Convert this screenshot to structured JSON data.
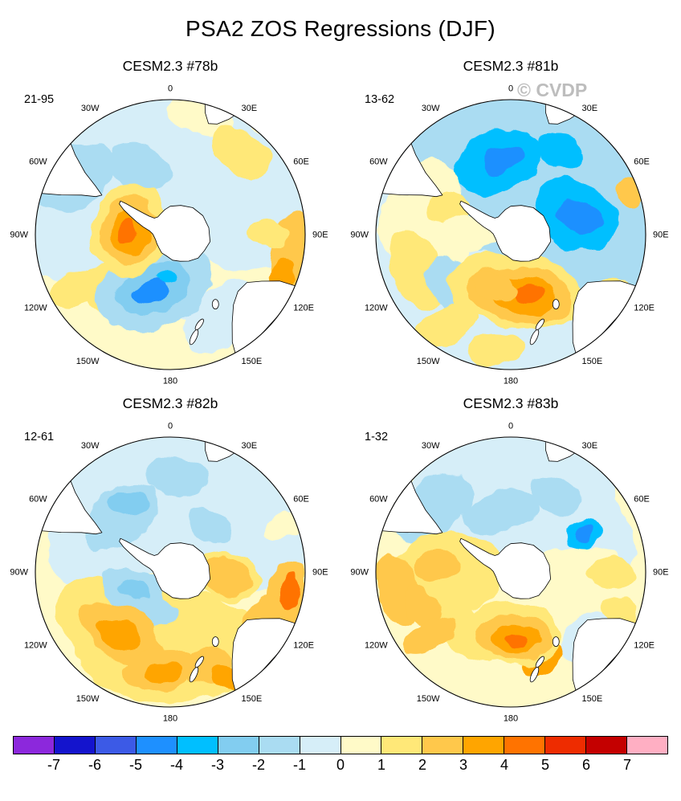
{
  "page": {
    "title": "PSA2 ZOS Regressions (DJF)",
    "watermark": "© CVDP"
  },
  "chart_data": {
    "type": "heatmap",
    "subtype": "south_polar_stereographic_filled_contour_maps",
    "title": "PSA2 ZOS Regressions (DJF)",
    "legend_position": "bottom",
    "lon_labels": [
      "0",
      "30E",
      "60E",
      "90E",
      "120E",
      "150E",
      "180",
      "150W",
      "120W",
      "90W",
      "60W",
      "30W"
    ],
    "colorbar": {
      "levels": [
        -7,
        -6,
        -5,
        -4,
        -3,
        -2,
        -1,
        0,
        1,
        2,
        3,
        4,
        5,
        6,
        7
      ],
      "labels": [
        "-7",
        "-6",
        "-5",
        "-4",
        "-3",
        "-2",
        "-1",
        "0",
        "1",
        "2",
        "3",
        "4",
        "5",
        "6",
        "7"
      ],
      "colors": [
        "#8C28DC",
        "#1414CD",
        "#3C5AE6",
        "#1E90FF",
        "#00BFFF",
        "#82CDF0",
        "#AADCF2",
        "#D6EEF8",
        "#FFFAC8",
        "#FFE878",
        "#FFC84B",
        "#FFA500",
        "#FF7300",
        "#EE2C00",
        "#C40000",
        "#FFAFC3"
      ]
    },
    "panels": [
      {
        "title": "CESM2.3 #78b",
        "years": "21-95",
        "summary": "Positive center (~+3 to +5) near 90W mid-high latitudes; negative center (~-2 to -4) near 150W-180; weak negative background north/east, weak positive south/west; positive band along 90E-120E rim.",
        "base": 8,
        "blobs": [
          [
            345,
            0.5,
            135,
            95,
            -15,
            7
          ],
          [
            60,
            0.55,
            110,
            85,
            30,
            7
          ],
          [
            270,
            0.6,
            90,
            70,
            0,
            7
          ],
          [
            300,
            0.85,
            55,
            40,
            -30,
            6
          ],
          [
            335,
            0.55,
            40,
            28,
            20,
            6
          ],
          [
            15,
            0.9,
            45,
            22,
            15,
            8
          ],
          [
            40,
            0.8,
            40,
            25,
            40,
            9
          ],
          [
            148,
            0.72,
            55,
            35,
            -40,
            7
          ],
          [
            160,
            0.55,
            30,
            20,
            0,
            7
          ],
          [
            222,
            0.6,
            50,
            30,
            30,
            9
          ],
          [
            240,
            0.8,
            35,
            22,
            -20,
            9
          ],
          [
            100,
            0.9,
            26,
            55,
            10,
            10
          ],
          [
            113,
            0.88,
            16,
            30,
            20,
            11
          ],
          [
            90,
            0.72,
            26,
            18,
            0,
            9
          ],
          [
            197,
            0.4,
            75,
            50,
            -20,
            6
          ],
          [
            197,
            0.42,
            48,
            30,
            -20,
            5
          ],
          [
            200,
            0.45,
            22,
            14,
            -10,
            3
          ],
          [
            182,
            0.33,
            12,
            8,
            0,
            4
          ],
          [
            277,
            0.3,
            48,
            58,
            15,
            9
          ],
          [
            277,
            0.3,
            36,
            44,
            15,
            10
          ],
          [
            276,
            0.3,
            25,
            31,
            15,
            11
          ],
          [
            274,
            0.32,
            13,
            17,
            15,
            12
          ]
        ]
      },
      {
        "title": "CESM2.3 #81b",
        "years": "13-62",
        "summary": "Broad negative region (~-1 to -4) over top and east with cores near 0 and 60-90E; positive band (~+1) from 60W through west; strong positive center (~+3 to +5) south of pole toward 150E-180.",
        "base": 7,
        "blobs": [
          [
            0,
            0.5,
            150,
            110,
            0,
            6
          ],
          [
            75,
            0.55,
            110,
            90,
            60,
            6
          ],
          [
            350,
            0.55,
            55,
            38,
            -20,
            4
          ],
          [
            352,
            0.56,
            26,
            16,
            -20,
            3
          ],
          [
            72,
            0.5,
            55,
            40,
            30,
            4
          ],
          [
            75,
            0.52,
            26,
            18,
            30,
            3
          ],
          [
            95,
            0.45,
            20,
            14,
            0,
            4
          ],
          [
            30,
            0.72,
            30,
            20,
            30,
            4
          ],
          [
            285,
            0.7,
            70,
            45,
            -60,
            8
          ],
          [
            262,
            0.55,
            60,
            40,
            -80,
            8
          ],
          [
            250,
            0.75,
            50,
            30,
            70,
            9
          ],
          [
            292,
            0.5,
            30,
            20,
            0,
            9
          ],
          [
            270,
            0.33,
            35,
            25,
            0,
            8
          ],
          [
            225,
            0.55,
            45,
            30,
            40,
            6
          ],
          [
            215,
            0.8,
            40,
            24,
            -30,
            9
          ],
          [
            188,
            0.85,
            35,
            20,
            0,
            9
          ],
          [
            140,
            0.8,
            30,
            20,
            -40,
            7
          ],
          [
            118,
            0.9,
            22,
            14,
            20,
            9
          ],
          [
            70,
            0.93,
            14,
            20,
            0,
            10
          ],
          [
            175,
            0.42,
            85,
            45,
            10,
            9
          ],
          [
            172,
            0.45,
            65,
            34,
            10,
            10
          ],
          [
            168,
            0.46,
            40,
            22,
            5,
            11
          ],
          [
            161,
            0.45,
            16,
            10,
            0,
            12
          ],
          [
            195,
            0.4,
            30,
            18,
            20,
            10
          ]
        ]
      },
      {
        "title": "CESM2.3 #82b",
        "years": "12-61",
        "summary": "Negative background (~-1 to -2) over top half; positive band (~+1 to +4) across lower half with centers near 150W, 180 and along 90E-120E rim; small negative pocket west-southwest of pole.",
        "base": 8,
        "blobs": [
          [
            355,
            0.55,
            140,
            95,
            0,
            7
          ],
          [
            60,
            0.6,
            90,
            70,
            40,
            7
          ],
          [
            300,
            0.6,
            80,
            55,
            -50,
            7
          ],
          [
            318,
            0.55,
            55,
            35,
            -40,
            6
          ],
          [
            330,
            0.6,
            24,
            16,
            0,
            5
          ],
          [
            5,
            0.7,
            40,
            24,
            10,
            6
          ],
          [
            40,
            0.45,
            30,
            20,
            30,
            6
          ],
          [
            180,
            0.55,
            120,
            70,
            0,
            9
          ],
          [
            225,
            0.6,
            80,
            50,
            40,
            9
          ],
          [
            95,
            0.42,
            45,
            28,
            10,
            9
          ],
          [
            68,
            0.9,
            30,
            16,
            -20,
            8
          ],
          [
            243,
            0.3,
            40,
            26,
            20,
            6
          ],
          [
            243,
            0.3,
            20,
            13,
            20,
            5
          ],
          [
            205,
            0.33,
            30,
            18,
            0,
            6
          ],
          [
            218,
            0.58,
            55,
            32,
            35,
            10
          ],
          [
            220,
            0.6,
            30,
            18,
            35,
            11
          ],
          [
            186,
            0.72,
            45,
            26,
            -10,
            10
          ],
          [
            184,
            0.74,
            22,
            13,
            -10,
            11
          ],
          [
            158,
            0.75,
            35,
            22,
            -20,
            10
          ],
          [
            150,
            0.9,
            25,
            15,
            30,
            11
          ],
          [
            102,
            0.88,
            26,
            48,
            12,
            10
          ],
          [
            98,
            0.9,
            12,
            22,
            10,
            12
          ],
          [
            115,
            0.75,
            30,
            18,
            -30,
            10
          ],
          [
            95,
            0.42,
            35,
            22,
            10,
            10
          ]
        ]
      },
      {
        "title": "CESM2.3 #83b",
        "years": "1-32",
        "summary": "Weak negative (~-1) across top and east with small core near 60E; scattered positives (~+1 to +4) at mid-low latitudes west and south; strongest positive center near 180 south of pole.",
        "base": 8,
        "blobs": [
          [
            0,
            0.6,
            130,
            80,
            0,
            7
          ],
          [
            55,
            0.55,
            90,
            65,
            45,
            7
          ],
          [
            310,
            0.75,
            55,
            35,
            -40,
            6
          ],
          [
            350,
            0.45,
            45,
            28,
            -10,
            6
          ],
          [
            30,
            0.65,
            35,
            22,
            20,
            6
          ],
          [
            130,
            0.75,
            40,
            25,
            -45,
            7
          ],
          [
            90,
            0.5,
            60,
            35,
            0,
            8
          ],
          [
            270,
            0.45,
            70,
            50,
            0,
            9
          ],
          [
            215,
            0.55,
            45,
            26,
            40,
            9
          ],
          [
            90,
            0.75,
            30,
            20,
            0,
            9
          ],
          [
            110,
            0.85,
            25,
            15,
            30,
            9
          ],
          [
            62,
            0.62,
            22,
            15,
            0,
            4
          ],
          [
            62,
            0.62,
            11,
            8,
            0,
            3
          ],
          [
            262,
            0.85,
            45,
            26,
            75,
            10
          ],
          [
            248,
            0.7,
            30,
            18,
            60,
            10
          ],
          [
            275,
            0.55,
            30,
            20,
            0,
            10
          ],
          [
            232,
            0.78,
            35,
            20,
            -30,
            10
          ],
          [
            150,
            0.55,
            14,
            10,
            0,
            3
          ],
          [
            160,
            0.68,
            28,
            16,
            -20,
            11
          ],
          [
            178,
            0.45,
            60,
            38,
            10,
            9
          ],
          [
            178,
            0.48,
            45,
            28,
            10,
            10
          ],
          [
            176,
            0.5,
            28,
            18,
            5,
            11
          ],
          [
            174,
            0.52,
            12,
            9,
            0,
            12
          ]
        ]
      }
    ]
  }
}
